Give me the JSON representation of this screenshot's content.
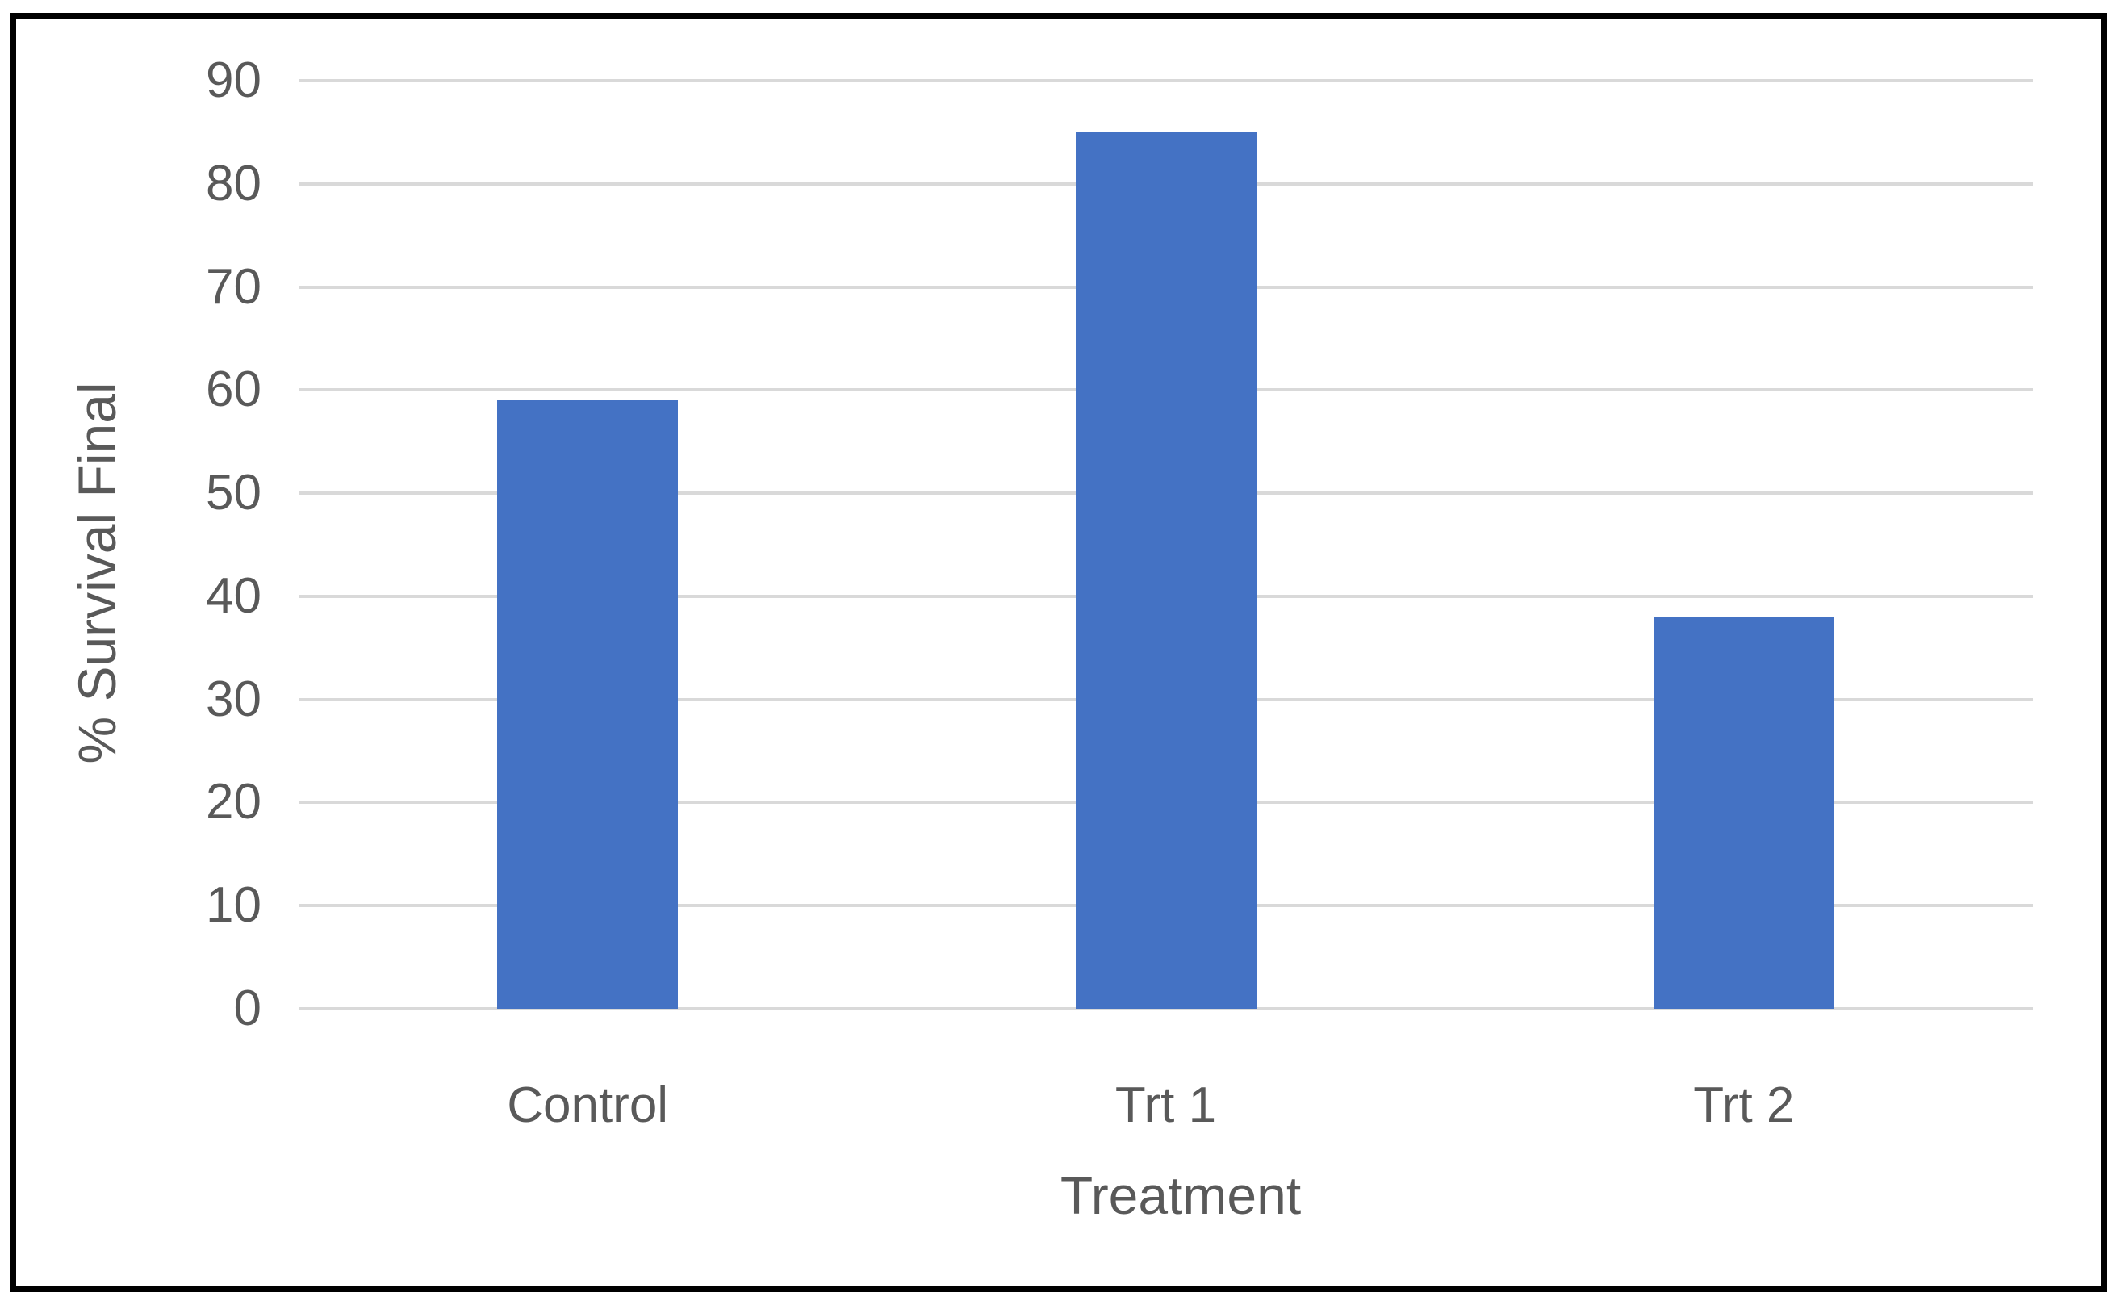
{
  "chart_data": {
    "type": "bar",
    "title": "",
    "categories": [
      "Control",
      "Trt 1",
      "Trt 2"
    ],
    "values": [
      59,
      85,
      38
    ],
    "xlabel": "Treatment",
    "ylabel": "% Survival Final",
    "ylim": [
      0,
      90
    ],
    "yticks": [
      0,
      10,
      20,
      30,
      40,
      50,
      60,
      70,
      80,
      90
    ],
    "grid": true,
    "legend": false,
    "bar_color": "#4472C4",
    "gridline_color": "#D9D9D9",
    "axis_line_color": "#D9D9D9",
    "text_color": "#595959",
    "frame_border_color": "#000000"
  }
}
